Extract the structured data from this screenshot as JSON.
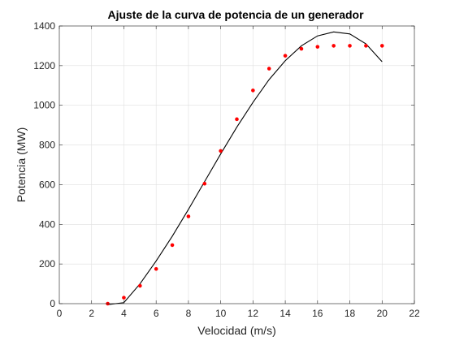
{
  "chart_data": {
    "type": "scatter",
    "title": "Ajuste de la curva de potencia de un generador",
    "xlabel": "Velocidad (m/s)",
    "ylabel": "Potencia (MW)",
    "xlim": [
      0,
      22
    ],
    "ylim": [
      0,
      1400
    ],
    "xticks": [
      0,
      2,
      4,
      6,
      8,
      10,
      12,
      14,
      16,
      18,
      20,
      22
    ],
    "yticks": [
      0,
      200,
      400,
      600,
      800,
      1000,
      1200,
      1400
    ],
    "grid": true,
    "legend": "none",
    "series": [
      {
        "kind": "markers",
        "color": "#ff0000",
        "x": [
          3,
          4,
          5,
          6,
          7,
          8,
          9,
          10,
          11,
          12,
          13,
          14,
          15,
          16,
          17,
          18,
          19,
          20
        ],
        "y": [
          0,
          30,
          90,
          175,
          295,
          440,
          605,
          770,
          930,
          1075,
          1185,
          1250,
          1285,
          1295,
          1300,
          1300,
          1300,
          1300
        ]
      },
      {
        "kind": "line",
        "color": "#000000",
        "x": [
          3,
          4,
          5,
          6,
          7,
          8,
          9,
          10,
          11,
          12,
          13,
          14,
          15,
          16,
          17,
          18,
          19,
          20
        ],
        "y": [
          -5,
          5,
          100,
          215,
          340,
          475,
          615,
          755,
          890,
          1015,
          1130,
          1225,
          1300,
          1350,
          1370,
          1360,
          1310,
          1220
        ]
      }
    ]
  }
}
